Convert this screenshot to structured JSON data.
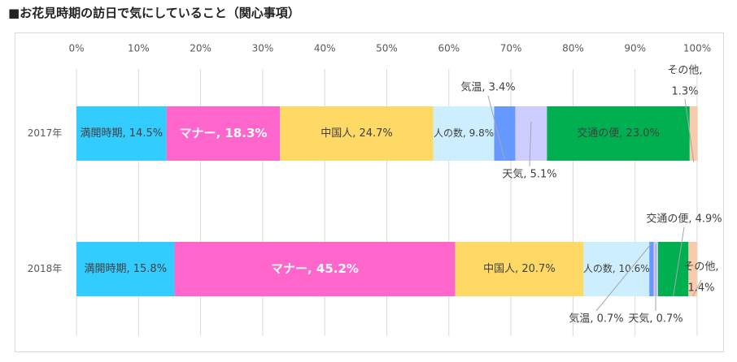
{
  "chart_data": {
    "type": "bar",
    "orientation": "horizontal",
    "stacked": true,
    "title": "■お花見時期の訪日で気にしていること（関心事項）",
    "categories": [
      "2017年",
      "2018年"
    ],
    "x_ticks": [
      "0%",
      "10%",
      "20%",
      "30%",
      "40%",
      "50%",
      "60%",
      "70%",
      "80%",
      "90%",
      "100%"
    ],
    "xlim": [
      0,
      100
    ],
    "grid": true,
    "series": [
      {
        "name": "満開時期",
        "color": "#33ccff",
        "values": [
          14.5,
          15.8
        ],
        "labels": [
          "満開時期, 14.5%",
          "満開時期, 15.8%"
        ]
      },
      {
        "name": "マナー",
        "color": "#ff66cc",
        "values": [
          18.3,
          45.2
        ],
        "labels": [
          "マナー, 18.3%",
          "マナー, 45.2%"
        ]
      },
      {
        "name": "中国人",
        "color": "#ffd966",
        "values": [
          24.7,
          20.7
        ],
        "labels": [
          "中国人, 24.7%",
          "中国人, 20.7%"
        ]
      },
      {
        "name": "人の数",
        "color": "#cceeff",
        "values": [
          9.8,
          10.6
        ],
        "labels": [
          "人の数, 9.8%",
          "人の数, 10.6%"
        ]
      },
      {
        "name": "気温",
        "color": "#6699ff",
        "values": [
          3.4,
          0.7
        ],
        "labels": [
          "気温, 3.4%",
          "気温, 0.7%"
        ]
      },
      {
        "name": "天気",
        "color": "#ccccff",
        "values": [
          5.1,
          0.7
        ],
        "labels": [
          "天気, 5.1%",
          "天気, 0.7%"
        ]
      },
      {
        "name": "交通の便",
        "color": "#00b050",
        "values": [
          23.0,
          4.9
        ],
        "labels": [
          "交通の便, 23.0%",
          "交通の便, 4.9%"
        ]
      },
      {
        "name": "その他",
        "color": "#f8cbad",
        "values": [
          1.3,
          1.4
        ],
        "labels": [
          "その他, 1.3%",
          "その他, 1.4%"
        ]
      }
    ],
    "callouts": [
      {
        "row": 0,
        "series": 4,
        "lines": [
          "気温, 3.4%"
        ]
      },
      {
        "row": 0,
        "series": 5,
        "lines": [
          "天気, 5.1%"
        ]
      },
      {
        "row": 0,
        "series": 7,
        "lines": [
          "その他,",
          "1.3%"
        ]
      },
      {
        "row": 1,
        "series": 4,
        "lines": [
          "気温, 0.7%"
        ]
      },
      {
        "row": 1,
        "series": 5,
        "lines": [
          "天気, 0.7%"
        ]
      },
      {
        "row": 1,
        "series": 6,
        "lines": [
          "交通の便, 4.9%"
        ]
      },
      {
        "row": 1,
        "series": 7,
        "lines": [
          "その他,",
          "1.4%"
        ]
      }
    ]
  }
}
